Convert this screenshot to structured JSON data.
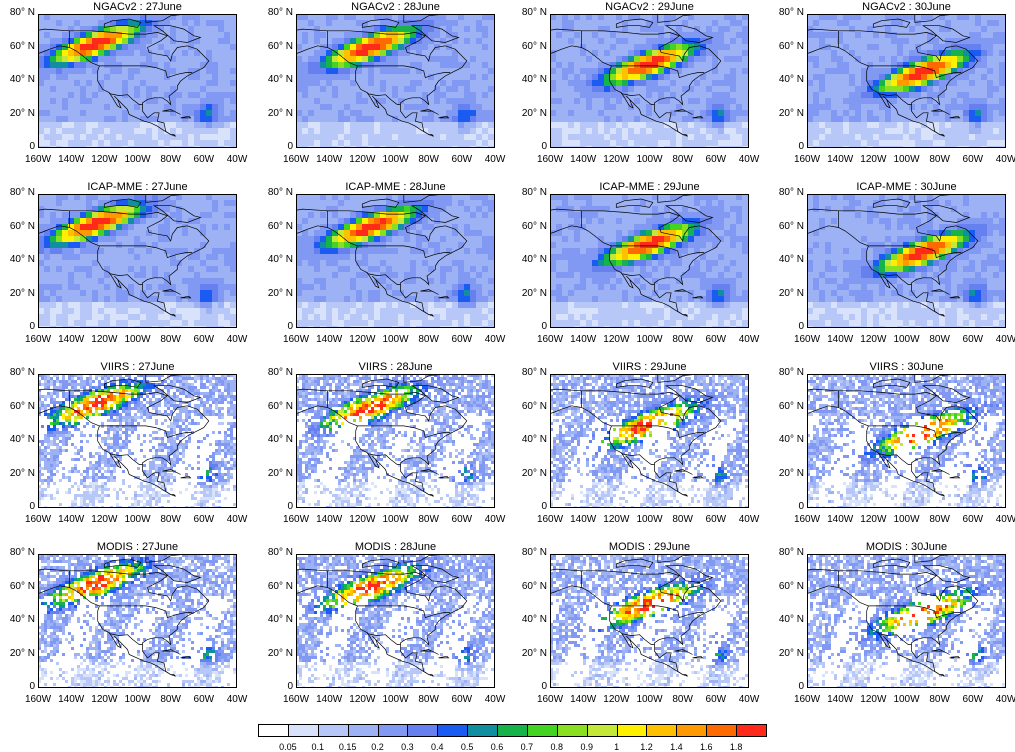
{
  "panels": [
    {
      "title": "NGACv2 : 27June",
      "plume": "p27",
      "row": 0
    },
    {
      "title": "NGACv2 : 28June",
      "plume": "p28",
      "row": 0
    },
    {
      "title": "NGACv2 : 29June",
      "plume": "p29",
      "row": 0
    },
    {
      "title": "NGACv2 : 30June",
      "plume": "p30",
      "row": 0
    },
    {
      "title": "ICAP-MME : 27June",
      "plume": "p27",
      "row": 1
    },
    {
      "title": "ICAP-MME : 28June",
      "plume": "p28",
      "row": 1
    },
    {
      "title": "ICAP-MME : 29June",
      "plume": "p29",
      "row": 1
    },
    {
      "title": "ICAP-MME : 30June",
      "plume": "p30",
      "row": 1
    },
    {
      "title": "VIIRS : 27June",
      "plume": "p27",
      "row": 2
    },
    {
      "title": "VIIRS : 28June",
      "plume": "p28",
      "row": 2
    },
    {
      "title": "VIIRS : 29June",
      "plume": "p29",
      "row": 2
    },
    {
      "title": "VIIRS : 30June",
      "plume": "p30",
      "row": 2
    },
    {
      "title": "MODIS : 27June",
      "plume": "p27",
      "row": 3
    },
    {
      "title": "MODIS : 28June",
      "plume": "p28",
      "row": 3
    },
    {
      "title": "MODIS : 29June",
      "plume": "p29",
      "row": 3
    },
    {
      "title": "MODIS : 30June",
      "plume": "p30",
      "row": 3
    }
  ],
  "lat_ticks": [
    "0",
    "20° N",
    "40° N",
    "60° N",
    "80° N"
  ],
  "lon_ticks": [
    "160W",
    "140W",
    "120W",
    "100W",
    "80W",
    "60W",
    "40W"
  ],
  "colorbar": {
    "labels": [
      "0.05",
      "0.1",
      "0.15",
      "0.2",
      "0.3",
      "0.4",
      "0.5",
      "0.6",
      "0.7",
      "0.8",
      "0.9",
      "1",
      "1.2",
      "1.4",
      "1.6",
      "1.8"
    ],
    "colors": [
      "#ffffff",
      "#d8e2fb",
      "#b7c8f8",
      "#9cb2f5",
      "#8199f2",
      "#6680ef",
      "#1a5cf2",
      "#0f8fa0",
      "#17b34a",
      "#43d421",
      "#8ae020",
      "#c4e838",
      "#fff000",
      "#ffc000",
      "#ff9900",
      "#ff6a00",
      "#ff2a1a"
    ]
  },
  "chart_data": {
    "type": "heatmap",
    "title": "",
    "rows": [
      "NGACv2",
      "ICAP-MME",
      "VIIRS",
      "MODIS"
    ],
    "columns": [
      "27June",
      "28June",
      "29June",
      "30June"
    ],
    "xlim": [
      -160,
      -40
    ],
    "ylim": [
      0,
      80
    ],
    "xticks": [
      "160W",
      "140W",
      "120W",
      "100W",
      "80W",
      "60W",
      "40W"
    ],
    "yticks": [
      "0",
      "20° N",
      "40° N",
      "60° N",
      "80° N"
    ],
    "colorbar_levels": [
      0.05,
      0.1,
      0.15,
      0.2,
      0.3,
      0.4,
      0.5,
      0.6,
      0.7,
      0.8,
      0.9,
      1,
      1.2,
      1.4,
      1.6,
      1.8
    ],
    "plume_max_lon_lat": {
      "27June": [
        -125,
        62
      ],
      "28June": [
        -115,
        60
      ],
      "29June": [
        -100,
        50
      ],
      "30June": [
        -90,
        45
      ]
    }
  }
}
